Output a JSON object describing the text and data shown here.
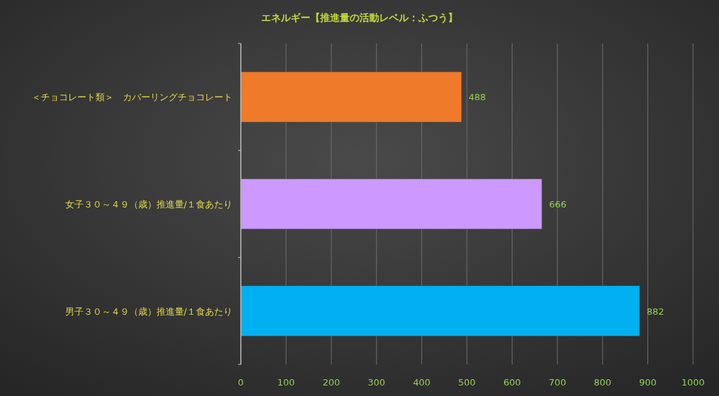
{
  "chart_data": {
    "type": "bar",
    "orientation": "horizontal",
    "title": "エネルギー【推進量の活動レベル：ふつう】",
    "categories": [
      "＜チョコレート類＞　カバーリングチョコレート",
      "女子３０～４９（歳）推進量/１食あたり",
      "男子３０～４９（歳）推進量/１食あたり"
    ],
    "values": [
      488,
      666,
      882
    ],
    "colors": [
      "#ee7a2a",
      "#cc99ff",
      "#00b0f0"
    ],
    "xlim": [
      0,
      1000
    ],
    "xticks": [
      0,
      100,
      200,
      300,
      400,
      500,
      600,
      700,
      800,
      900,
      1000
    ],
    "grid": "x",
    "data_labels": true
  }
}
